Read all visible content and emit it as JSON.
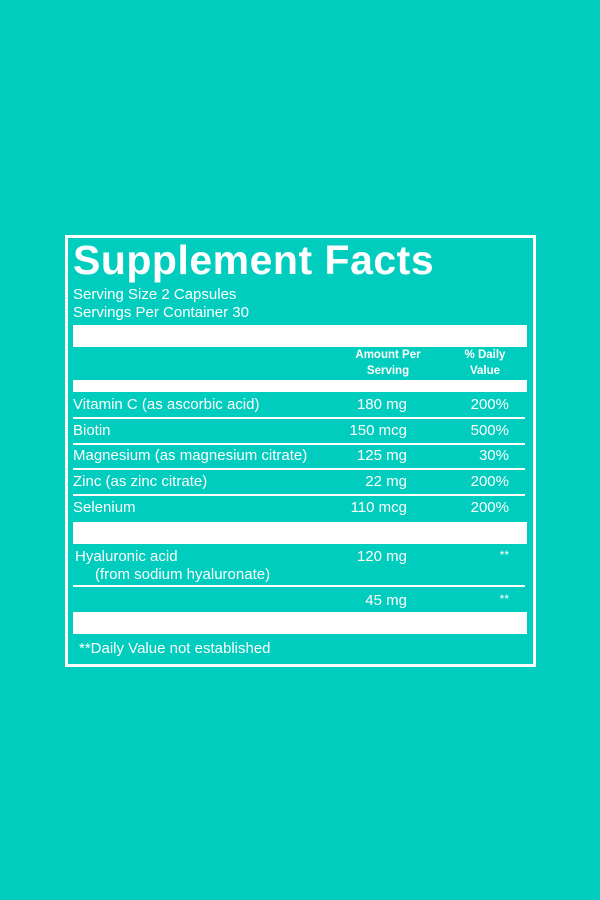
{
  "header": {
    "title": "Supplement Facts",
    "serving_size": "Serving Size 2 Capsules",
    "servings_per_container": "Servings Per Container 30"
  },
  "table": {
    "columns": {
      "amount": [
        "Amount Per",
        "Serving"
      ],
      "daily_value": [
        "% Daily",
        "Value"
      ]
    },
    "rows": [
      {
        "name": "Vitamin C (as ascorbic acid)",
        "amount": "180 mg",
        "daily_value": "200%"
      },
      {
        "name": "Biotin",
        "amount": "150 mcg",
        "daily_value": "500%"
      },
      {
        "name": "Magnesium (as magnesium citrate)",
        "amount": "125 mg",
        "daily_value": "30%"
      },
      {
        "name": "Zinc (as zinc citrate)",
        "amount": "22 mg",
        "daily_value": "200%"
      },
      {
        "name": "Selenium",
        "amount": "110 mcg",
        "daily_value": "200%"
      }
    ],
    "other_rows": [
      {
        "name": "Hyaluronic acid",
        "source": "(from sodium hyaluronate)",
        "amount": "120 mg",
        "daily_value": "**"
      },
      {
        "amount": "45 mg",
        "daily_value": "**"
      }
    ]
  },
  "footnote": "**Daily Value not established"
}
